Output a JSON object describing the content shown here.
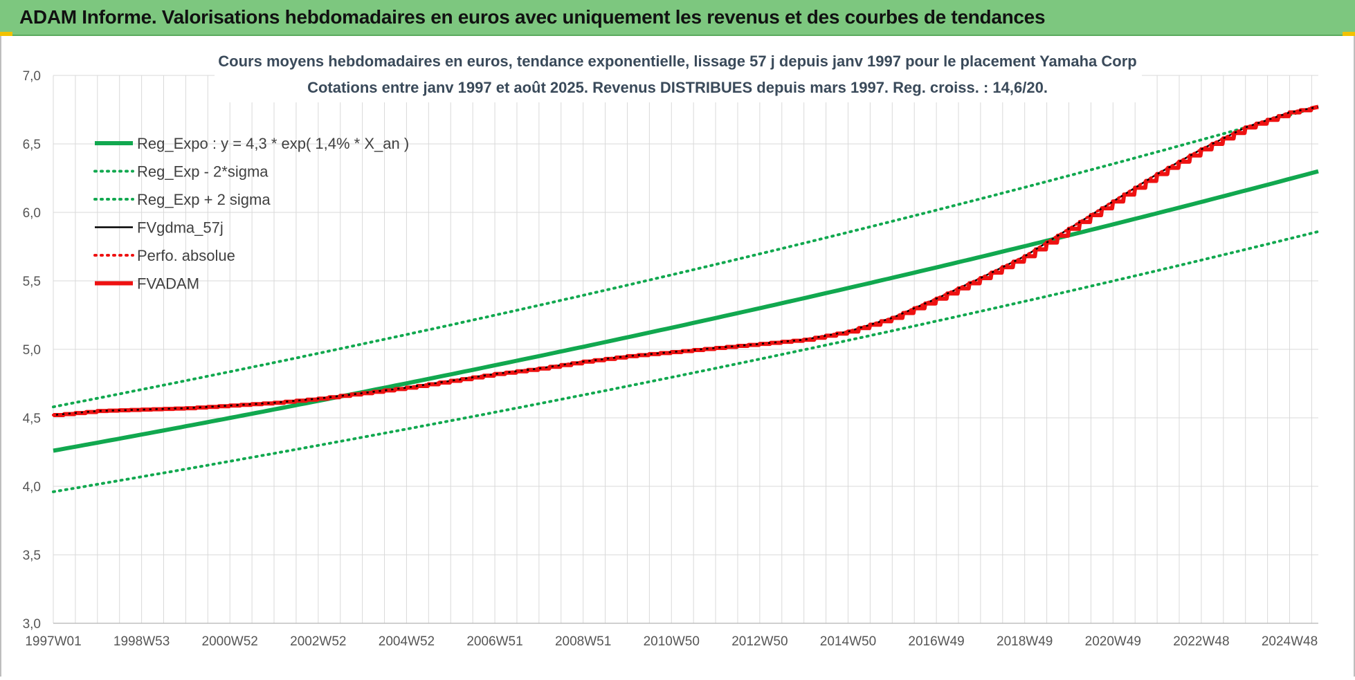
{
  "header": {
    "title": "ADAM Informe. Valorisations hebdomadaires en euros avec uniquement les revenus et des courbes de tendances"
  },
  "colors": {
    "header_bg": "#7dc77f",
    "green": "#11a84f",
    "red": "#ee1111",
    "black": "#000000",
    "grid": "#d9d9d9"
  },
  "chart_data": {
    "type": "line",
    "title": "Cours moyens hebdomadaires en euros, tendance exponentielle, lissage 57 j depuis janv 1997 pour le placement Yamaha Corp",
    "subtitle": "Cotations entre janv 1997 et août 2025.  Revenus DISTRIBUES depuis mars 1997. Reg. croiss. : 14,6/20.",
    "xlabel": "",
    "ylabel": "",
    "ylim": [
      3.0,
      7.0
    ],
    "y_ticks": [
      "3,0",
      "3,5",
      "4,0",
      "4,5",
      "5,0",
      "5,5",
      "6,0",
      "6,5",
      "7,0"
    ],
    "x_range": [
      1997.0,
      2025.65
    ],
    "x_ticks": [
      {
        "label": "1997W01",
        "x": 1997.0
      },
      {
        "label": "1998W53",
        "x": 1999.0
      },
      {
        "label": "2000W52",
        "x": 2001.0
      },
      {
        "label": "2002W52",
        "x": 2003.0
      },
      {
        "label": "2004W52",
        "x": 2005.0
      },
      {
        "label": "2006W51",
        "x": 2007.0
      },
      {
        "label": "2008W51",
        "x": 2009.0
      },
      {
        "label": "2010W50",
        "x": 2011.0
      },
      {
        "label": "2012W50",
        "x": 2013.0
      },
      {
        "label": "2014W50",
        "x": 2015.0
      },
      {
        "label": "2016W49",
        "x": 2017.0
      },
      {
        "label": "2018W49",
        "x": 2019.0
      },
      {
        "label": "2020W49",
        "x": 2021.0
      },
      {
        "label": "2022W48",
        "x": 2023.0
      },
      {
        "label": "2024W48",
        "x": 2025.0
      }
    ],
    "grid": true,
    "legend_position": "top-left",
    "series": [
      {
        "name": "Reg_Expo : y = 4,3 * exp( 1,4% *  X_an )",
        "style": "solid-thick",
        "color": "#11a84f",
        "x": [
          1997.0,
          2025.65
        ],
        "y": [
          4.26,
          6.3
        ]
      },
      {
        "name": "Reg_Exp - 2*sigma",
        "style": "dotted",
        "color": "#11a84f",
        "x": [
          1997.0,
          2025.65
        ],
        "y": [
          3.96,
          5.86
        ]
      },
      {
        "name": "Reg_Exp + 2 sigma",
        "style": "dotted",
        "color": "#11a84f",
        "x": [
          1997.0,
          2025.65
        ],
        "y": [
          4.58,
          6.77
        ]
      },
      {
        "name": "FVgdma_57j",
        "style": "solid-thin",
        "color": "#000000",
        "x": [
          1997.0,
          1998.0,
          1999.0,
          2000.0,
          2001.0,
          2002.0,
          2003.0,
          2004.0,
          2005.0,
          2006.0,
          2007.0,
          2008.0,
          2009.0,
          2010.0,
          2011.0,
          2012.0,
          2013.0,
          2014.0,
          2015.0,
          2016.0,
          2017.0,
          2018.0,
          2019.0,
          2020.0,
          2021.0,
          2022.0,
          2023.0,
          2024.0,
          2025.0,
          2025.65
        ],
        "y": [
          4.52,
          4.55,
          4.56,
          4.57,
          4.59,
          4.61,
          4.64,
          4.68,
          4.72,
          4.77,
          4.82,
          4.86,
          4.91,
          4.95,
          4.98,
          5.01,
          5.04,
          5.07,
          5.13,
          5.23,
          5.37,
          5.52,
          5.68,
          5.88,
          6.08,
          6.28,
          6.46,
          6.62,
          6.73,
          6.77
        ]
      },
      {
        "name": "Perfo. absolue",
        "style": "dotted",
        "color": "#ee1111",
        "x": [
          1997.0,
          1998.0,
          1999.0,
          2000.0,
          2001.0,
          2002.0,
          2003.0,
          2004.0,
          2005.0,
          2006.0,
          2007.0,
          2008.0,
          2009.0,
          2010.0,
          2011.0,
          2012.0,
          2013.0,
          2014.0,
          2015.0,
          2016.0,
          2017.0,
          2018.0,
          2019.0,
          2020.0,
          2021.0,
          2022.0,
          2023.0,
          2024.0,
          2025.0,
          2025.65
        ],
        "y": [
          4.52,
          4.55,
          4.56,
          4.57,
          4.59,
          4.61,
          4.64,
          4.68,
          4.72,
          4.77,
          4.82,
          4.86,
          4.91,
          4.95,
          4.98,
          5.01,
          5.04,
          5.07,
          5.13,
          5.23,
          5.37,
          5.52,
          5.68,
          5.88,
          6.08,
          6.28,
          6.46,
          6.62,
          6.73,
          6.77
        ]
      },
      {
        "name": "FVADAM",
        "style": "solid-thick-stepped",
        "color": "#ee1111",
        "x": [
          1997.0,
          1998.0,
          1999.0,
          2000.0,
          2001.0,
          2002.0,
          2003.0,
          2004.0,
          2005.0,
          2006.0,
          2007.0,
          2008.0,
          2009.0,
          2010.0,
          2011.0,
          2012.0,
          2013.0,
          2014.0,
          2015.0,
          2016.0,
          2017.0,
          2018.0,
          2019.0,
          2020.0,
          2021.0,
          2022.0,
          2023.0,
          2024.0,
          2025.0,
          2025.65
        ],
        "y": [
          4.52,
          4.55,
          4.56,
          4.57,
          4.59,
          4.61,
          4.64,
          4.68,
          4.72,
          4.77,
          4.82,
          4.86,
          4.91,
          4.95,
          4.98,
          5.01,
          5.04,
          5.07,
          5.13,
          5.23,
          5.37,
          5.52,
          5.68,
          5.88,
          6.08,
          6.28,
          6.46,
          6.62,
          6.73,
          6.77
        ]
      }
    ]
  }
}
